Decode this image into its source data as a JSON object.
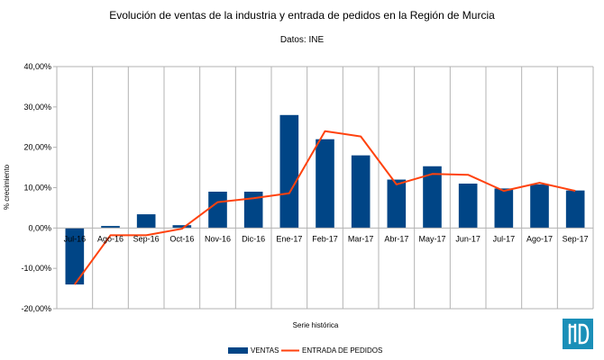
{
  "chart_data": {
    "type": "bar",
    "title": "Evolución de ventas de la industria y entrada de pedidos en la Región de Murcia",
    "subtitle": "Datos: INE",
    "xlabel": "Serie histórica",
    "ylabel": "% crecimiento",
    "ylim": [
      -20,
      40
    ],
    "yticks": [
      -20,
      -10,
      0,
      10,
      20,
      30,
      40
    ],
    "ytick_labels": [
      "-20,00%",
      "-10,00%",
      "0,00%",
      "10,00%",
      "20,00%",
      "30,00%",
      "40,00%"
    ],
    "categories": [
      "Jul-16",
      "Ago-16",
      "Sep-16",
      "Oct-16",
      "Nov-16",
      "Dic-16",
      "Ene-17",
      "Feb-17",
      "Mar-17",
      "Abr-17",
      "May-17",
      "Jun-17",
      "Jul-17",
      "Ago-17",
      "Sep-17"
    ],
    "series": [
      {
        "name": "VENTAS",
        "type": "bar",
        "color": "#004586",
        "values": [
          -14.0,
          0.5,
          3.4,
          0.7,
          9.0,
          9.0,
          28.0,
          22.0,
          18.0,
          12.0,
          15.3,
          11.0,
          9.8,
          10.8,
          9.3
        ]
      },
      {
        "name": "ENTRADA DE PEDIDOS",
        "type": "line",
        "color": "#ff420e",
        "values": [
          -14.0,
          -1.8,
          -1.8,
          -0.2,
          6.4,
          7.4,
          8.6,
          24.0,
          22.7,
          10.8,
          13.4,
          13.2,
          9.2,
          11.2,
          9.2
        ]
      }
    ],
    "grid": "vertical",
    "legend": "bottom"
  }
}
